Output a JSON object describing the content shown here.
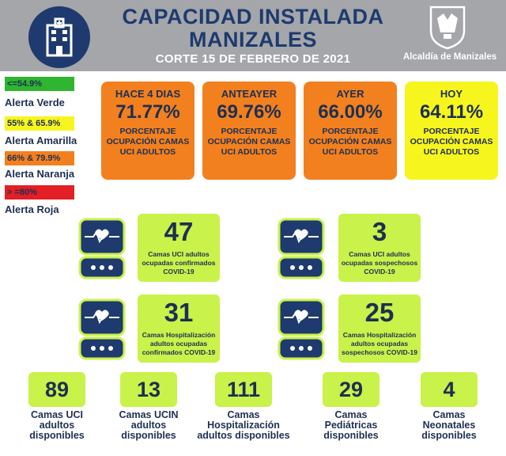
{
  "header": {
    "title_line1": "CAPACIDAD INSTALADA",
    "title_line2": "MANIZALES",
    "cut_date": "CORTE 15 DE FEBRERO DE 2021",
    "org": "Alcaldía de Manizales"
  },
  "legend": [
    {
      "range": "<=54.9%",
      "label": "Alerta Verde",
      "color": "#2fb52f"
    },
    {
      "range": "55% & 65.9%",
      "label": "Alerta Amarilla",
      "color": "#f7f51e"
    },
    {
      "range": "66% & 79.9%",
      "label": "Alerta Naranja",
      "color": "#f2801f"
    },
    {
      "range": "> =80%",
      "label": "Alerta Roja",
      "color": "#e31e24"
    }
  ],
  "occupancy": [
    {
      "when": "HACE 4 DIAS",
      "pct": "71.77%",
      "desc": "PORCENTAJE OCUPACIÓN CAMAS UCI ADULTOS",
      "color": "#f2801f"
    },
    {
      "when": "ANTEAYER",
      "pct": "69.76%",
      "desc": "PORCENTAJE OCUPACIÓN CAMAS UCI ADULTOS",
      "color": "#f2801f"
    },
    {
      "when": "AYER",
      "pct": "66.00%",
      "desc": "PORCENTAJE OCUPACIÓN CAMAS UCI ADULTOS",
      "color": "#f2801f"
    },
    {
      "when": "HOY",
      "pct": "64.11%",
      "desc": "PORCENTAJE OCUPACIÓN CAMAS UCI ADULTOS",
      "color": "#f7f51e"
    }
  ],
  "stats": [
    {
      "num": "47",
      "text": "Camas UCI adultos ocupadas confirmados COVID-19"
    },
    {
      "num": "3",
      "text": "Camas UCI adultos ocupadas sospechosos COVID-19"
    },
    {
      "num": "31",
      "text": "Camas Hospitalización adultos ocupadas confirmados COVID-19"
    },
    {
      "num": "25",
      "text": "Camas Hospitalización adultos ocupadas sospechosos COVID-19"
    }
  ],
  "available": [
    {
      "num": "89",
      "label": "Camas UCI adultos disponibles"
    },
    {
      "num": "13",
      "label": "Camas UCIN adultos disponibles"
    },
    {
      "num": "111",
      "label": "Camas Hospitalización adultos disponibles"
    },
    {
      "num": "29",
      "label": "Camas Pediátricas disponibles"
    },
    {
      "num": "4",
      "label": "Camas Neonatales disponibles"
    }
  ],
  "colors": {
    "navy": "#1e3a6e",
    "lime": "#c9f24a",
    "header_bg": "#a4a6aa"
  },
  "icons": {
    "badge": "hospital-building-icon",
    "seal": "city-seal-icon",
    "monitor": "heart-monitor-icon"
  }
}
